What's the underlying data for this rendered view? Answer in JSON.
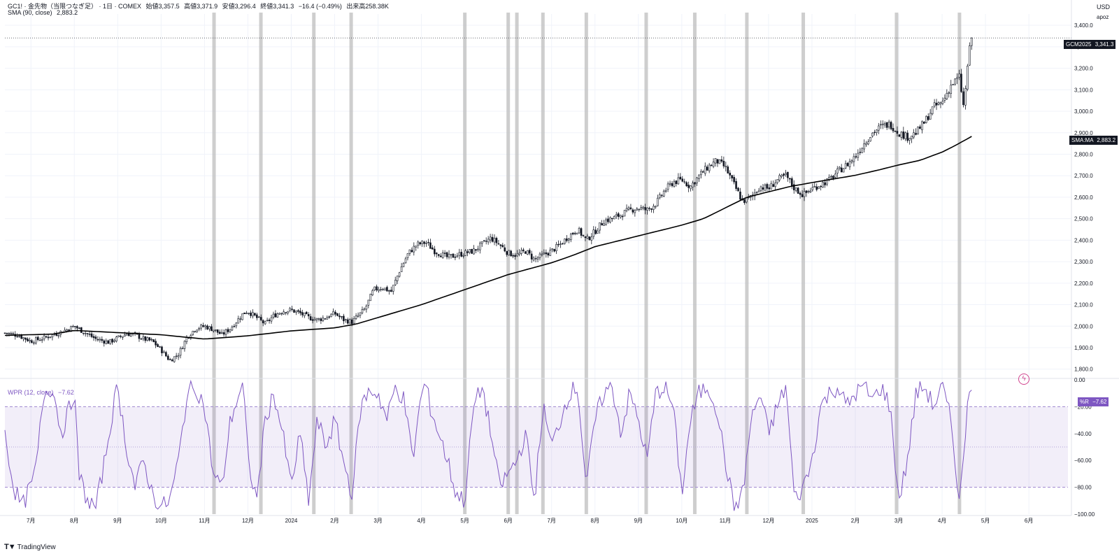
{
  "header": {
    "symbol_line": "GC1! · 金先物（当限つなぎ足） · 1日 · COMEX",
    "open_label": "始値",
    "open": "3,357.5",
    "high_label": "高値",
    "high": "3,371.9",
    "low_label": "安値",
    "low": "3,296.4",
    "close_label": "終値",
    "close": "3,341.3",
    "change": "−16.4 (−0.49%)",
    "volume_label": "出来高",
    "volume": "258.38K"
  },
  "sma_legend": {
    "label": "SMA (90, close)",
    "value": "2,883.2"
  },
  "wpr_legend": {
    "label": "WPR (12, close)",
    "value": "−7.62"
  },
  "axis": {
    "currency": "USD",
    "scale_label": "apoz"
  },
  "badges": {
    "price": {
      "label": "GCM2025",
      "value": "3,341.3"
    },
    "sma": {
      "label": "SMA:MA",
      "value": "2,883.2"
    },
    "wpr": {
      "label": "%R",
      "value": "−7.62"
    }
  },
  "footer": {
    "brand": "TradingView"
  },
  "colors": {
    "candle": "#131722",
    "sma": "#000000",
    "wpr": "#7e57c2",
    "band": "#7e57c2",
    "vbar": "#bdbdbd",
    "grid": "#f0f3fa"
  },
  "chart_data": [
    {
      "type": "candlestick",
      "title": "GC1!",
      "ylim": [
        1760,
        3420
      ],
      "y_ticks": [
        "1,800.0",
        "1,900.0",
        "2,000.0",
        "2,100.0",
        "2,200.0",
        "2,300.0",
        "2,400.0",
        "2,500.0",
        "2,600.0",
        "2,700.0",
        "2,800.0",
        "2,900.0",
        "3,000.0",
        "3,100.0",
        "3,200.0",
        "3,300.0",
        "3,400.0"
      ],
      "x_ticks": [
        "7月",
        "8月",
        "9月",
        "10月",
        "11月",
        "12月",
        "2024",
        "2月",
        "3月",
        "4月",
        "5月",
        "6月",
        "7月",
        "8月",
        "9月",
        "10月",
        "11月",
        "12月",
        "2025",
        "2月",
        "3月",
        "4月",
        "5月",
        "6月"
      ],
      "x_tick_months": [
        0,
        1,
        2,
        3,
        4,
        5,
        6,
        7,
        8,
        9,
        10,
        11,
        12,
        13,
        14,
        15,
        16,
        17,
        18,
        19,
        20,
        21,
        22,
        23
      ],
      "x_range_months": [
        -0.6,
        23.9
      ],
      "last_month": 21.68,
      "close_anchors": [
        [
          -0.6,
          1968
        ],
        [
          -0.3,
          1958
        ],
        [
          0.0,
          1930
        ],
        [
          0.3,
          1945
        ],
        [
          0.6,
          1966
        ],
        [
          0.9,
          1990
        ],
        [
          1.0,
          2000
        ],
        [
          1.2,
          1975
        ],
        [
          1.5,
          1940
        ],
        [
          1.8,
          1925
        ],
        [
          2.0,
          1945
        ],
        [
          2.2,
          1965
        ],
        [
          2.4,
          1960
        ],
        [
          2.6,
          1940
        ],
        [
          2.8,
          1930
        ],
        [
          3.0,
          1890
        ],
        [
          3.2,
          1840
        ],
        [
          3.4,
          1870
        ],
        [
          3.6,
          1950
        ],
        [
          3.8,
          1990
        ],
        [
          4.0,
          2000
        ],
        [
          4.2,
          1985
        ],
        [
          4.4,
          1960
        ],
        [
          4.6,
          1990
        ],
        [
          4.9,
          2060
        ],
        [
          5.0,
          2070
        ],
        [
          5.2,
          2040
        ],
        [
          5.4,
          2010
        ],
        [
          5.6,
          2050
        ],
        [
          5.8,
          2070
        ],
        [
          6.0,
          2075
        ],
        [
          6.2,
          2060
        ],
        [
          6.4,
          2040
        ],
        [
          6.6,
          2030
        ],
        [
          6.8,
          2040
        ],
        [
          7.0,
          2060
        ],
        [
          7.2,
          2030
        ],
        [
          7.4,
          2020
        ],
        [
          7.7,
          2080
        ],
        [
          7.9,
          2170
        ],
        [
          8.1,
          2180
        ],
        [
          8.3,
          2160
        ],
        [
          8.5,
          2260
        ],
        [
          8.7,
          2340
        ],
        [
          8.9,
          2380
        ],
        [
          9.1,
          2390
        ],
        [
          9.3,
          2350
        ],
        [
          9.6,
          2320
        ],
        [
          9.8,
          2330
        ],
        [
          10.0,
          2340
        ],
        [
          10.2,
          2350
        ],
        [
          10.4,
          2380
        ],
        [
          10.6,
          2410
        ],
        [
          10.8,
          2380
        ],
        [
          11.0,
          2340
        ],
        [
          11.2,
          2330
        ],
        [
          11.4,
          2350
        ],
        [
          11.6,
          2310
        ],
        [
          11.8,
          2330
        ],
        [
          12.0,
          2350
        ],
        [
          12.2,
          2380
        ],
        [
          12.4,
          2420
        ],
        [
          12.6,
          2450
        ],
        [
          12.8,
          2400
        ],
        [
          13.0,
          2440
        ],
        [
          13.2,
          2490
        ],
        [
          13.4,
          2500
        ],
        [
          13.6,
          2520
        ],
        [
          13.8,
          2540
        ],
        [
          14.0,
          2550
        ],
        [
          14.2,
          2540
        ],
        [
          14.4,
          2570
        ],
        [
          14.6,
          2630
        ],
        [
          14.8,
          2670
        ],
        [
          15.0,
          2680
        ],
        [
          15.2,
          2650
        ],
        [
          15.4,
          2700
        ],
        [
          15.6,
          2740
        ],
        [
          15.8,
          2770
        ],
        [
          16.0,
          2740
        ],
        [
          16.2,
          2660
        ],
        [
          16.4,
          2580
        ],
        [
          16.6,
          2600
        ],
        [
          16.8,
          2650
        ],
        [
          17.0,
          2640
        ],
        [
          17.2,
          2680
        ],
        [
          17.4,
          2700
        ],
        [
          17.6,
          2640
        ],
        [
          17.8,
          2610
        ],
        [
          18.0,
          2640
        ],
        [
          18.2,
          2660
        ],
        [
          18.4,
          2680
        ],
        [
          18.6,
          2720
        ],
        [
          18.8,
          2750
        ],
        [
          19.0,
          2790
        ],
        [
          19.2,
          2850
        ],
        [
          19.4,
          2900
        ],
        [
          19.6,
          2930
        ],
        [
          19.8,
          2940
        ],
        [
          20.0,
          2900
        ],
        [
          20.2,
          2880
        ],
        [
          20.4,
          2900
        ],
        [
          20.6,
          2950
        ],
        [
          20.8,
          3020
        ],
        [
          21.0,
          3040
        ],
        [
          21.2,
          3120
        ],
        [
          21.4,
          3160
        ],
        [
          21.5,
          3010
        ],
        [
          21.6,
          3250
        ],
        [
          21.68,
          3341
        ]
      ],
      "sma_anchors": [
        [
          -0.6,
          1957
        ],
        [
          0.5,
          1963
        ],
        [
          1.0,
          1980
        ],
        [
          1.5,
          1975
        ],
        [
          2.0,
          1970
        ],
        [
          3.0,
          1960
        ],
        [
          3.5,
          1950
        ],
        [
          4.0,
          1940
        ],
        [
          5.0,
          1955
        ],
        [
          6.0,
          1978
        ],
        [
          7.0,
          1992
        ],
        [
          7.5,
          2010
        ],
        [
          8.0,
          2040
        ],
        [
          9.0,
          2100
        ],
        [
          10.0,
          2170
        ],
        [
          11.0,
          2240
        ],
        [
          12.0,
          2295
        ],
        [
          12.5,
          2330
        ],
        [
          13.0,
          2370
        ],
        [
          14.0,
          2420
        ],
        [
          15.0,
          2470
        ],
        [
          15.5,
          2500
        ],
        [
          16.0,
          2550
        ],
        [
          16.5,
          2600
        ],
        [
          17.0,
          2625
        ],
        [
          17.5,
          2650
        ],
        [
          18.0,
          2668
        ],
        [
          19.0,
          2702
        ],
        [
          19.5,
          2725
        ],
        [
          20.0,
          2750
        ],
        [
          20.5,
          2772
        ],
        [
          21.0,
          2810
        ],
        [
          21.3,
          2840
        ],
        [
          21.68,
          2883
        ]
      ],
      "last_close": 3341.3,
      "last_sma": 2883.2
    },
    {
      "type": "line",
      "title": "WPR (12, close)",
      "ylim": [
        -100,
        0
      ],
      "y_ticks": [
        "0.00",
        "−20.00",
        "−40.00",
        "−60.00",
        "−80.00",
        "−100.00"
      ],
      "bands": [
        -20,
        -50,
        -80
      ],
      "wpr_anchors": [
        [
          -0.6,
          -40
        ],
        [
          -0.4,
          -80
        ],
        [
          -0.2,
          -95
        ],
        [
          0.1,
          -70
        ],
        [
          0.3,
          -10
        ],
        [
          0.5,
          -5
        ],
        [
          0.7,
          -40
        ],
        [
          0.9,
          -20
        ],
        [
          1.0,
          -8
        ],
        [
          1.1,
          -70
        ],
        [
          1.3,
          -90
        ],
        [
          1.5,
          -95
        ],
        [
          1.7,
          -60
        ],
        [
          1.9,
          -20
        ],
        [
          2.0,
          -5
        ],
        [
          2.2,
          -50
        ],
        [
          2.4,
          -80
        ],
        [
          2.6,
          -60
        ],
        [
          2.8,
          -85
        ],
        [
          3.0,
          -95
        ],
        [
          3.2,
          -90
        ],
        [
          3.4,
          -60
        ],
        [
          3.6,
          -10
        ],
        [
          3.8,
          -5
        ],
        [
          4.0,
          -20
        ],
        [
          4.2,
          -70
        ],
        [
          4.4,
          -80
        ],
        [
          4.6,
          -30
        ],
        [
          4.8,
          -10
        ],
        [
          4.9,
          -5
        ],
        [
          5.0,
          -60
        ],
        [
          5.2,
          -90
        ],
        [
          5.4,
          -30
        ],
        [
          5.6,
          -10
        ],
        [
          5.8,
          -40
        ],
        [
          6.0,
          -80
        ],
        [
          6.2,
          -40
        ],
        [
          6.4,
          -90
        ],
        [
          6.6,
          -30
        ],
        [
          6.8,
          -50
        ],
        [
          7.0,
          -30
        ],
        [
          7.2,
          -60
        ],
        [
          7.4,
          -85
        ],
        [
          7.6,
          -20
        ],
        [
          7.8,
          -8
        ],
        [
          8.0,
          -10
        ],
        [
          8.2,
          -30
        ],
        [
          8.4,
          -5
        ],
        [
          8.6,
          -15
        ],
        [
          8.8,
          -60
        ],
        [
          9.0,
          -10
        ],
        [
          9.1,
          -3
        ],
        [
          9.2,
          -20
        ],
        [
          9.4,
          -40
        ],
        [
          9.6,
          -60
        ],
        [
          9.8,
          -85
        ],
        [
          10.0,
          -90
        ],
        [
          10.2,
          -20
        ],
        [
          10.4,
          -5
        ],
        [
          10.6,
          -40
        ],
        [
          10.8,
          -80
        ],
        [
          11.0,
          -70
        ],
        [
          11.2,
          -60
        ],
        [
          11.4,
          -40
        ],
        [
          11.6,
          -90
        ],
        [
          11.8,
          -20
        ],
        [
          12.0,
          -50
        ],
        [
          12.2,
          -30
        ],
        [
          12.4,
          -10
        ],
        [
          12.6,
          -5
        ],
        [
          12.8,
          -80
        ],
        [
          13.0,
          -30
        ],
        [
          13.2,
          -10
        ],
        [
          13.4,
          -5
        ],
        [
          13.6,
          -40
        ],
        [
          13.8,
          -10
        ],
        [
          14.0,
          -30
        ],
        [
          14.2,
          -60
        ],
        [
          14.4,
          -10
        ],
        [
          14.6,
          -5
        ],
        [
          14.8,
          -20
        ],
        [
          15.0,
          -85
        ],
        [
          15.2,
          -30
        ],
        [
          15.4,
          -10
        ],
        [
          15.6,
          -5
        ],
        [
          15.8,
          -20
        ],
        [
          16.0,
          -60
        ],
        [
          16.2,
          -95
        ],
        [
          16.4,
          -85
        ],
        [
          16.6,
          -30
        ],
        [
          16.8,
          -10
        ],
        [
          17.0,
          -40
        ],
        [
          17.2,
          -20
        ],
        [
          17.4,
          -5
        ],
        [
          17.6,
          -90
        ],
        [
          17.8,
          -80
        ],
        [
          18.0,
          -60
        ],
        [
          18.2,
          -20
        ],
        [
          18.4,
          -10
        ],
        [
          18.6,
          -5
        ],
        [
          18.8,
          -20
        ],
        [
          19.0,
          -10
        ],
        [
          19.2,
          -5
        ],
        [
          19.4,
          -15
        ],
        [
          19.6,
          -5
        ],
        [
          19.8,
          -20
        ],
        [
          20.0,
          -90
        ],
        [
          20.2,
          -60
        ],
        [
          20.4,
          -10
        ],
        [
          20.6,
          -5
        ],
        [
          20.8,
          -20
        ],
        [
          21.0,
          -5
        ],
        [
          21.2,
          -30
        ],
        [
          21.4,
          -90
        ],
        [
          21.5,
          -60
        ],
        [
          21.6,
          -5
        ],
        [
          21.68,
          -7.62
        ]
      ],
      "last_value": -7.62
    }
  ],
  "vertical_markers_months": [
    4.22,
    5.3,
    6.52,
    7.38,
    10.0,
    11.0,
    11.2,
    11.8,
    12.8,
    14.18,
    15.3,
    16.5,
    17.8,
    19.95,
    21.4
  ]
}
